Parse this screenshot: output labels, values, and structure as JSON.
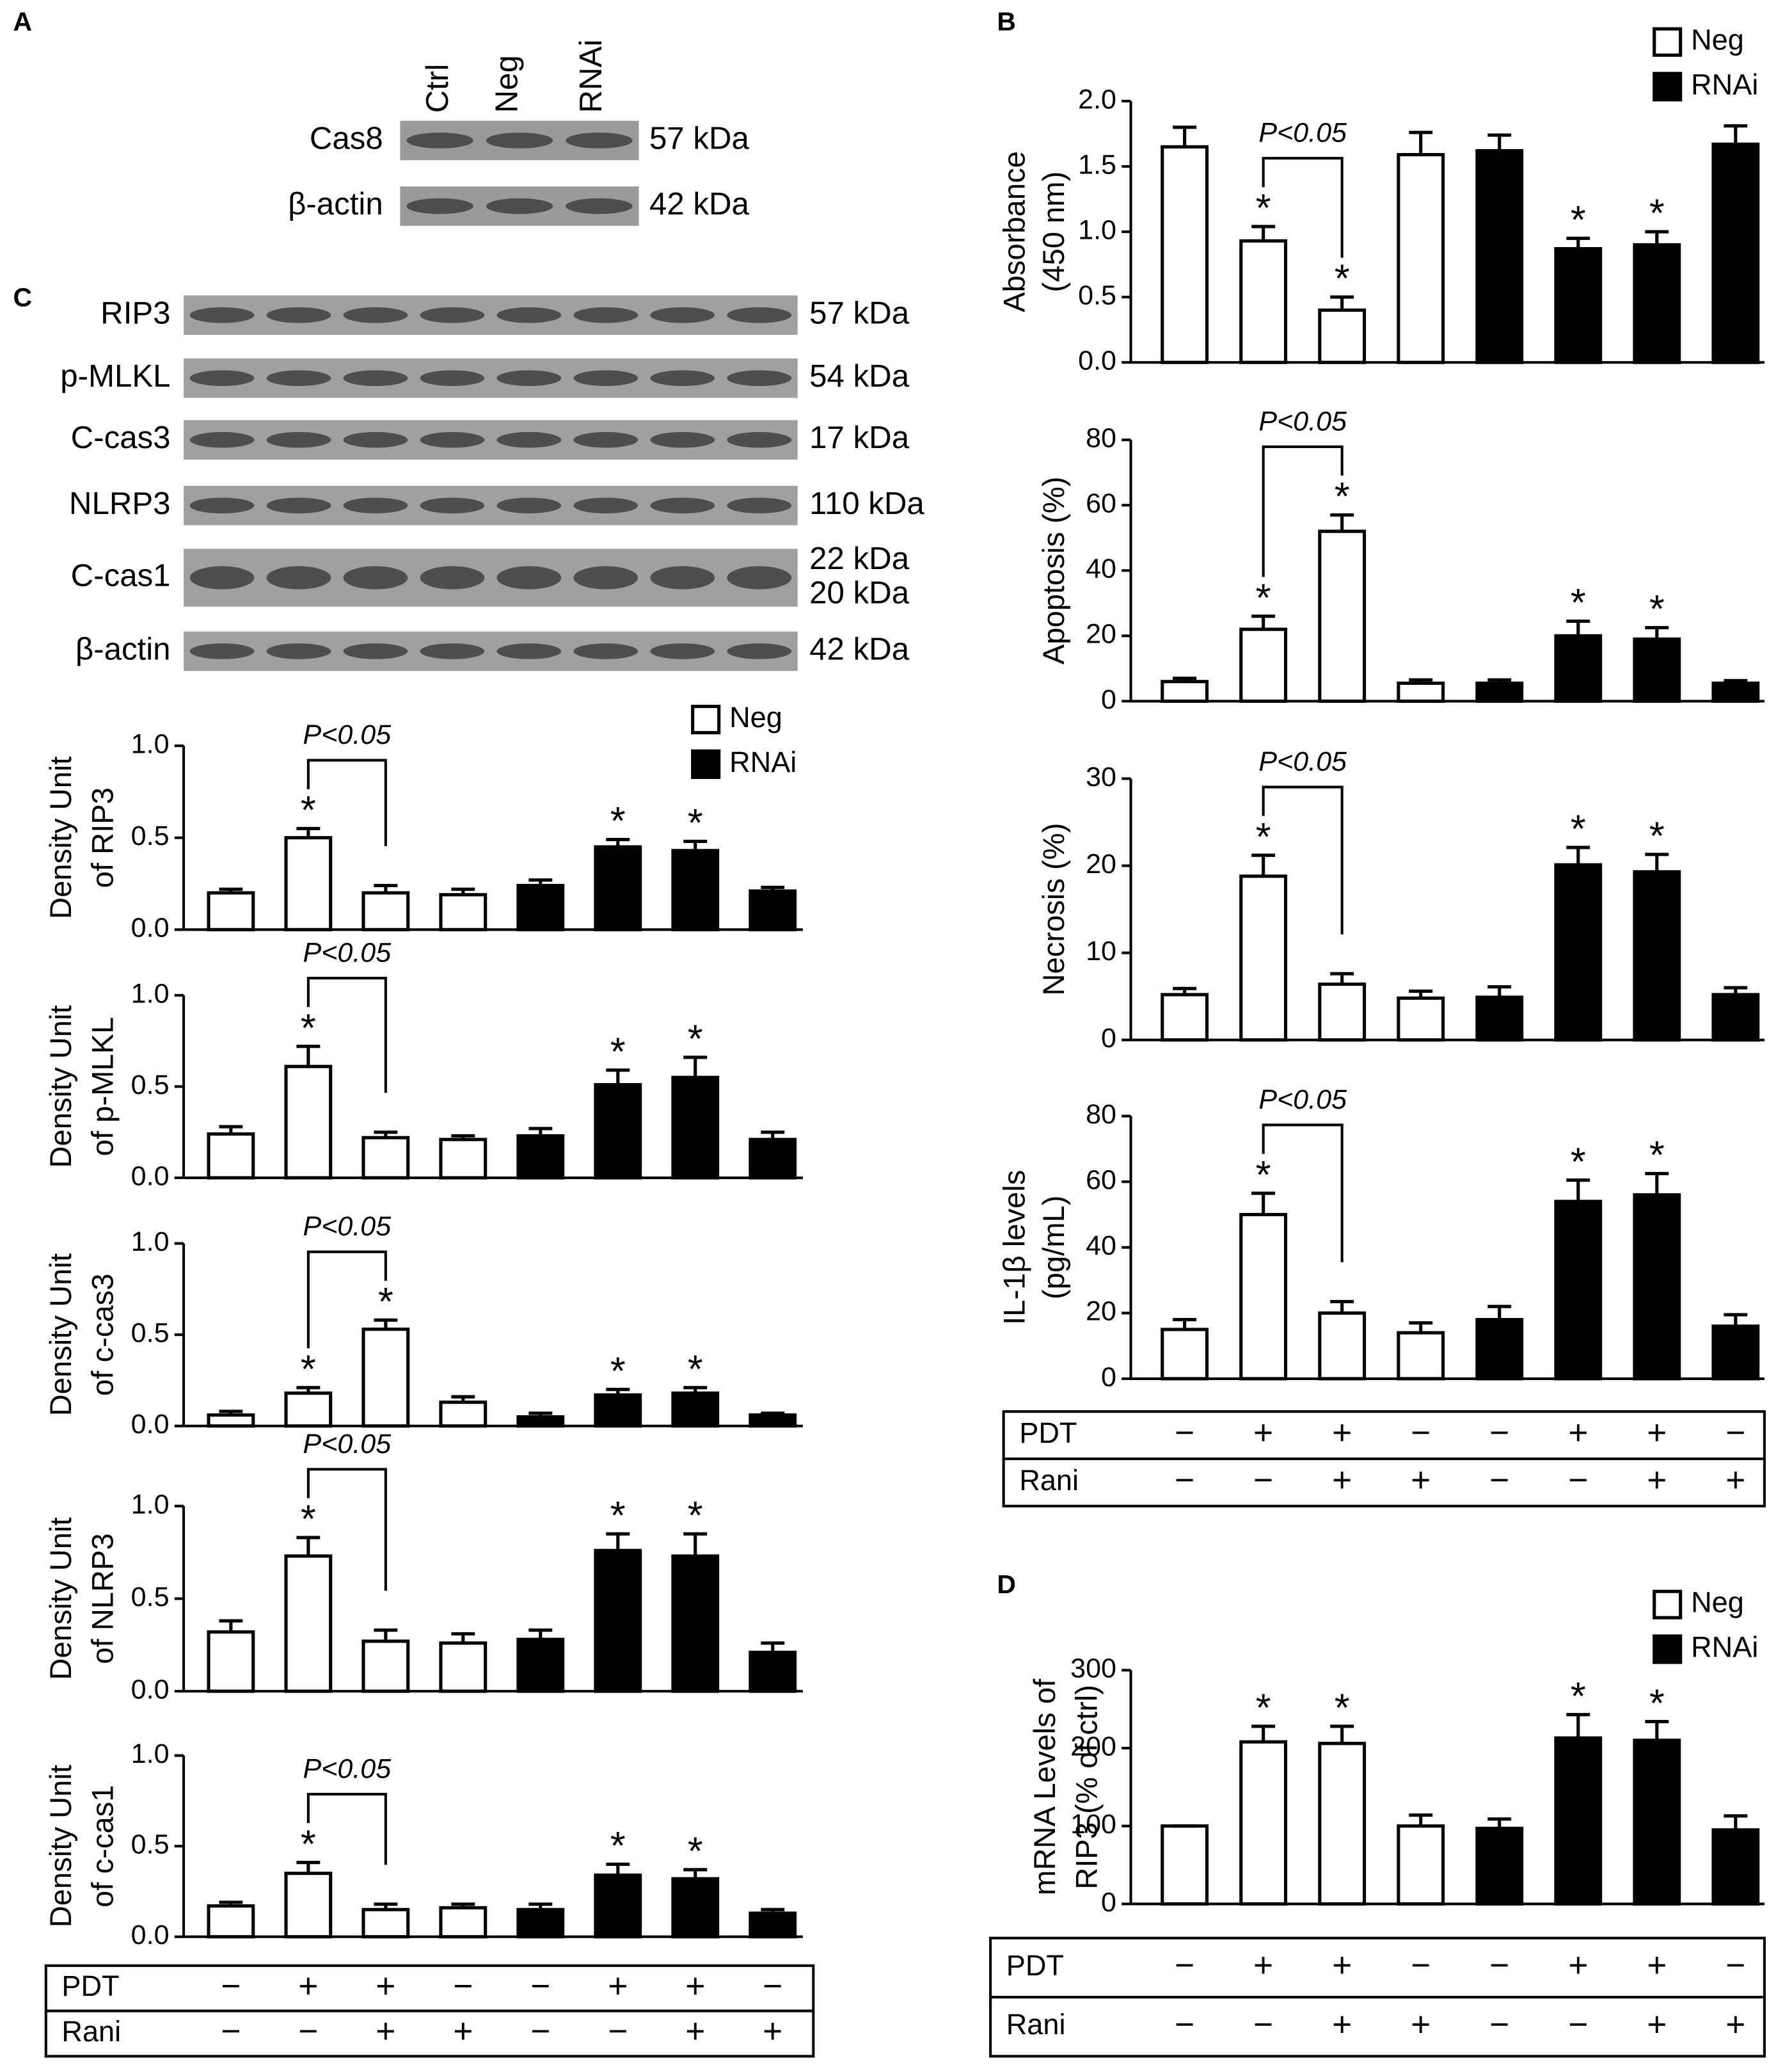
{
  "panel_labels": [
    "A",
    "B",
    "C",
    "D"
  ],
  "blot_a": {
    "lanes": [
      "Ctrl",
      "Neg",
      "RNAi"
    ],
    "rows": [
      {
        "label": "Cas8",
        "kda": [
          "57 kDa"
        ]
      },
      {
        "label": "β-actin",
        "kda": [
          "42 kDa"
        ]
      }
    ]
  },
  "blot_c": {
    "rows": [
      {
        "label": "RIP3",
        "kda": [
          "57 kDa"
        ]
      },
      {
        "label": "p-MLKL",
        "kda": [
          "54 kDa"
        ]
      },
      {
        "label": "C-cas3",
        "kda": [
          "17 kDa"
        ]
      },
      {
        "label": "NLRP3",
        "kda": [
          "110 kDa"
        ]
      },
      {
        "label": "C-cas1",
        "kda": [
          "22 kDa",
          "20 kDa"
        ]
      },
      {
        "label": "β-actin",
        "kda": [
          "42 kDa"
        ]
      }
    ]
  },
  "chart_data": [
    {
      "type": "bar",
      "ylabel": [
        "Density Unit",
        "of RIP3"
      ],
      "ylim": [
        0,
        1
      ],
      "yticks": [
        {
          "value": 0,
          "label": "0.0"
        },
        {
          "value": 0.5,
          "label": "0.5"
        },
        {
          "value": 1,
          "label": "1.0"
        }
      ],
      "legend": "upper right",
      "sig_marker": "*",
      "comparison": {
        "label": "P<0.05",
        "between": [
          1,
          2
        ]
      },
      "series": [
        {
          "name": "Neg",
          "color": "#ffffff",
          "values": [
            0.2,
            0.5,
            0.2,
            0.19
          ],
          "errors": [
            0.02,
            0.05,
            0.04,
            0.03
          ],
          "significant": [
            false,
            true,
            false,
            false
          ]
        },
        {
          "name": "RNAi",
          "color": "#000000",
          "values": [
            0.24,
            0.45,
            0.43,
            0.21
          ],
          "errors": [
            0.03,
            0.04,
            0.05,
            0.02
          ],
          "significant": [
            false,
            true,
            true,
            false
          ]
        }
      ]
    },
    {
      "type": "bar",
      "ylabel": [
        "Density Unit",
        "of p-MLKL"
      ],
      "ylim": [
        0,
        1
      ],
      "yticks": [
        {
          "value": 0,
          "label": "0.0"
        },
        {
          "value": 0.5,
          "label": "0.5"
        },
        {
          "value": 1,
          "label": "1.0"
        }
      ],
      "sig_marker": "*",
      "comparison": {
        "label": "P<0.05",
        "between": [
          1,
          2
        ]
      },
      "series": [
        {
          "name": "Neg",
          "color": "#ffffff",
          "values": [
            0.24,
            0.61,
            0.22,
            0.21
          ],
          "errors": [
            0.04,
            0.11,
            0.03,
            0.02
          ],
          "significant": [
            false,
            true,
            false,
            false
          ]
        },
        {
          "name": "RNAi",
          "color": "#000000",
          "values": [
            0.23,
            0.51,
            0.55,
            0.21
          ],
          "errors": [
            0.04,
            0.08,
            0.11,
            0.04
          ],
          "significant": [
            false,
            true,
            true,
            false
          ]
        }
      ]
    },
    {
      "type": "bar",
      "ylabel": [
        "Density Unit",
        "of c-cas3"
      ],
      "ylim": [
        0,
        1
      ],
      "yticks": [
        {
          "value": 0,
          "label": "0.0"
        },
        {
          "value": 0.5,
          "label": "0.5"
        },
        {
          "value": 1,
          "label": "1.0"
        }
      ],
      "sig_marker": "*",
      "comparison": {
        "label": "P<0.05",
        "between": [
          1,
          2
        ]
      },
      "series": [
        {
          "name": "Neg",
          "color": "#ffffff",
          "values": [
            0.06,
            0.18,
            0.53,
            0.13
          ],
          "errors": [
            0.02,
            0.03,
            0.05,
            0.03
          ],
          "significant": [
            false,
            true,
            true,
            false
          ]
        },
        {
          "name": "RNAi",
          "color": "#000000",
          "values": [
            0.05,
            0.17,
            0.18,
            0.06
          ],
          "errors": [
            0.02,
            0.03,
            0.03,
            0.01
          ],
          "significant": [
            false,
            true,
            true,
            false
          ]
        }
      ]
    },
    {
      "type": "bar",
      "ylabel": [
        "Density Unit",
        "of NLRP3"
      ],
      "ylim": [
        0,
        1
      ],
      "yticks": [
        {
          "value": 0,
          "label": "0.0"
        },
        {
          "value": 0.5,
          "label": "0.5"
        },
        {
          "value": 1,
          "label": "1.0"
        }
      ],
      "sig_marker": "*",
      "comparison": {
        "label": "P<0.05",
        "between": [
          1,
          2
        ]
      },
      "series": [
        {
          "name": "Neg",
          "color": "#ffffff",
          "values": [
            0.32,
            0.73,
            0.27,
            0.26
          ],
          "errors": [
            0.06,
            0.1,
            0.06,
            0.05
          ],
          "significant": [
            false,
            true,
            false,
            false
          ]
        },
        {
          "name": "RNAi",
          "color": "#000000",
          "values": [
            0.28,
            0.76,
            0.73,
            0.21
          ],
          "errors": [
            0.05,
            0.09,
            0.12,
            0.05
          ],
          "significant": [
            false,
            true,
            true,
            false
          ]
        }
      ]
    },
    {
      "type": "bar",
      "ylabel": [
        "Density Unit",
        "of c-cas1"
      ],
      "ylim": [
        0,
        1
      ],
      "yticks": [
        {
          "value": 0,
          "label": "0.0"
        },
        {
          "value": 0.5,
          "label": "0.5"
        },
        {
          "value": 1,
          "label": "1.0"
        }
      ],
      "sig_marker": "*",
      "comparison": {
        "label": "P<0.05",
        "between": [
          1,
          2
        ]
      },
      "series": [
        {
          "name": "Neg",
          "color": "#ffffff",
          "values": [
            0.17,
            0.35,
            0.15,
            0.16
          ],
          "errors": [
            0.02,
            0.06,
            0.03,
            0.02
          ],
          "significant": [
            false,
            true,
            false,
            false
          ]
        },
        {
          "name": "RNAi",
          "color": "#000000",
          "values": [
            0.15,
            0.34,
            0.32,
            0.13
          ],
          "errors": [
            0.03,
            0.06,
            0.05,
            0.02
          ],
          "significant": [
            false,
            true,
            true,
            false
          ]
        }
      ]
    },
    {
      "type": "bar",
      "ylabel": [
        "Absorbance",
        "(450 nm)"
      ],
      "ylim": [
        0,
        2
      ],
      "yticks": [
        {
          "value": 0,
          "label": "0.0"
        },
        {
          "value": 0.5,
          "label": "0.5"
        },
        {
          "value": 1,
          "label": "1.0"
        },
        {
          "value": 1.5,
          "label": "1.5"
        },
        {
          "value": 2,
          "label": "2.0"
        }
      ],
      "legend": "upper right",
      "sig_marker": "*",
      "comparison": {
        "label": "P<0.05",
        "between": [
          1,
          2
        ]
      },
      "series": [
        {
          "name": "Neg",
          "color": "#ffffff",
          "values": [
            1.65,
            0.93,
            0.4,
            1.59
          ],
          "errors": [
            0.15,
            0.11,
            0.1,
            0.17
          ],
          "significant": [
            false,
            true,
            true,
            false
          ]
        },
        {
          "name": "RNAi",
          "color": "#000000",
          "values": [
            1.62,
            0.87,
            0.9,
            1.67
          ],
          "errors": [
            0.12,
            0.08,
            0.1,
            0.14
          ],
          "significant": [
            false,
            true,
            true,
            false
          ]
        }
      ]
    },
    {
      "type": "bar",
      "ylabel": [
        "Apoptosis (%)"
      ],
      "ylim": [
        0,
        80
      ],
      "yticks": [
        0,
        20,
        40,
        60,
        80
      ],
      "sig_marker": "*",
      "comparison": {
        "label": "P<0.05",
        "between": [
          1,
          2
        ]
      },
      "series": [
        {
          "name": "Neg",
          "color": "#ffffff",
          "values": [
            6,
            22,
            52,
            5.5
          ],
          "errors": [
            1,
            4,
            5,
            1
          ],
          "significant": [
            false,
            true,
            true,
            false
          ]
        },
        {
          "name": "RNAi",
          "color": "#000000",
          "values": [
            5.5,
            20,
            19,
            5.5
          ],
          "errors": [
            1,
            4.5,
            3.5,
            0.8
          ],
          "significant": [
            false,
            true,
            true,
            false
          ]
        }
      ]
    },
    {
      "type": "bar",
      "ylabel": [
        "Necrosis (%)"
      ],
      "ylim": [
        0,
        30
      ],
      "yticks": [
        0,
        10,
        20,
        30
      ],
      "sig_marker": "*",
      "comparison": {
        "label": "P<0.05",
        "between": [
          1,
          2
        ]
      },
      "series": [
        {
          "name": "Neg",
          "color": "#ffffff",
          "values": [
            5.2,
            18.8,
            6.4,
            4.8
          ],
          "errors": [
            0.7,
            2.4,
            1.2,
            0.8
          ],
          "significant": [
            false,
            true,
            false,
            false
          ]
        },
        {
          "name": "RNAi",
          "color": "#000000",
          "values": [
            4.9,
            20.1,
            19.3,
            5.2
          ],
          "errors": [
            1.2,
            2,
            2,
            0.8
          ],
          "significant": [
            false,
            true,
            true,
            false
          ]
        }
      ]
    },
    {
      "type": "bar",
      "ylabel": [
        "IL-1β levels",
        "(pg/mL)"
      ],
      "ylim": [
        0,
        80
      ],
      "yticks": [
        0,
        20,
        40,
        60,
        80
      ],
      "sig_marker": "*",
      "comparison": {
        "label": "P<0.05",
        "between": [
          1,
          2
        ]
      },
      "series": [
        {
          "name": "Neg",
          "color": "#ffffff",
          "values": [
            15,
            50,
            20,
            14
          ],
          "errors": [
            3,
            6.5,
            3.5,
            3
          ],
          "significant": [
            false,
            true,
            false,
            false
          ]
        },
        {
          "name": "RNAi",
          "color": "#000000",
          "values": [
            18,
            54,
            56,
            16
          ],
          "errors": [
            4,
            6.5,
            6.5,
            3.5
          ],
          "significant": [
            false,
            true,
            true,
            false
          ]
        }
      ]
    },
    {
      "type": "bar",
      "ylabel": [
        "mRNA Levels of",
        "RIP3 (% of ctrl)"
      ],
      "ylim": [
        0,
        300
      ],
      "yticks": [
        0,
        100,
        200,
        300
      ],
      "legend": "upper right",
      "sig_marker": "*",
      "series": [
        {
          "name": "Neg",
          "color": "#ffffff",
          "values": [
            100,
            208,
            206,
            100
          ],
          "errors": [
            0,
            20,
            22,
            14
          ],
          "significant": [
            false,
            true,
            true,
            false
          ]
        },
        {
          "name": "RNAi",
          "color": "#000000",
          "values": [
            97,
            213,
            210,
            95
          ],
          "errors": [
            12,
            30,
            24,
            18
          ],
          "significant": [
            false,
            true,
            true,
            false
          ]
        }
      ]
    }
  ],
  "treatment_tables": [
    {
      "rows": [
        {
          "label": "PDT",
          "signs": [
            "−",
            "+",
            "+",
            "−",
            "−",
            "+",
            "+",
            "−"
          ]
        },
        {
          "label": "Rani",
          "signs": [
            "−",
            "−",
            "+",
            "+",
            "−",
            "−",
            "+",
            "+"
          ]
        }
      ]
    },
    {
      "rows": [
        {
          "label": "PDT",
          "signs": [
            "−",
            "+",
            "+",
            "−",
            "−",
            "+",
            "+",
            "−"
          ]
        },
        {
          "label": "Rani",
          "signs": [
            "−",
            "−",
            "+",
            "+",
            "−",
            "−",
            "+",
            "+"
          ]
        }
      ]
    },
    {
      "rows": [
        {
          "label": "PDT",
          "signs": [
            "−",
            "+",
            "+",
            "−",
            "−",
            "+",
            "+",
            "−"
          ]
        },
        {
          "label": "Rani",
          "signs": [
            "−",
            "−",
            "+",
            "+",
            "−",
            "−",
            "+",
            "+"
          ]
        }
      ]
    }
  ]
}
